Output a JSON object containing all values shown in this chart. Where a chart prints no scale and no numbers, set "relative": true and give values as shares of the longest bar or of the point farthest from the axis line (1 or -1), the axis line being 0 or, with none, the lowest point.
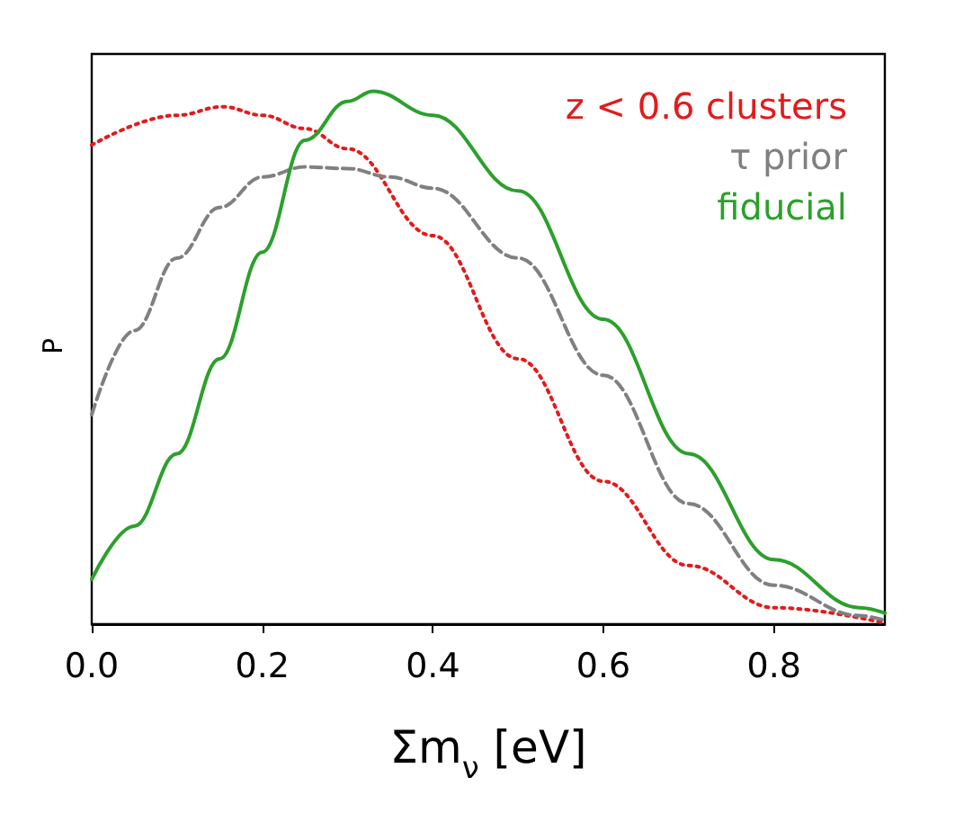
{
  "chart_data": {
    "type": "line",
    "relative": true,
    "xlabel": "Σm$_{ν}$ [eV]",
    "ylabel": "P",
    "xlim": [
      0,
      0.93
    ],
    "xticks": [
      {
        "value": 0,
        "label": "0.0"
      },
      {
        "value": 0.2,
        "label": "0.2"
      },
      {
        "value": 0.4,
        "label": "0.4"
      },
      {
        "value": 0.6,
        "label": "0.6"
      },
      {
        "value": 0.8,
        "label": "0.8"
      }
    ],
    "legend": "top right",
    "grid": false,
    "marker": "none",
    "series": [
      {
        "name": "z < 0.6 clusters",
        "color": "#e41a1c",
        "line_style": "dotted",
        "x": [
          0,
          0.1,
          0.154,
          0.2,
          0.25,
          0.3,
          0.4,
          0.5,
          0.6,
          0.7,
          0.8,
          0.93
        ],
        "values": [
          0.899,
          0.955,
          0.971,
          0.955,
          0.93,
          0.892,
          0.729,
          0.498,
          0.268,
          0.11,
          0.031,
          0.002
        ]
      },
      {
        "name": "τ prior",
        "color": "#808080",
        "line_style": "dashed",
        "x": [
          0,
          0.05,
          0.1,
          0.15,
          0.2,
          0.25,
          0.3,
          0.35,
          0.4,
          0.5,
          0.6,
          0.7,
          0.8,
          0.9,
          0.93
        ],
        "values": [
          0.393,
          0.551,
          0.687,
          0.782,
          0.839,
          0.858,
          0.855,
          0.839,
          0.818,
          0.687,
          0.467,
          0.226,
          0.073,
          0.016,
          0.007
        ]
      },
      {
        "name": "fiducial",
        "color": "#2ca02c",
        "line_style": "solid",
        "x": [
          0,
          0.05,
          0.1,
          0.15,
          0.2,
          0.25,
          0.3,
          0.33,
          0.4,
          0.5,
          0.6,
          0.7,
          0.8,
          0.9,
          0.93
        ],
        "values": [
          0.084,
          0.184,
          0.32,
          0.498,
          0.698,
          0.908,
          0.981,
          1,
          0.955,
          0.813,
          0.572,
          0.32,
          0.121,
          0.031,
          0.021
        ]
      }
    ]
  }
}
